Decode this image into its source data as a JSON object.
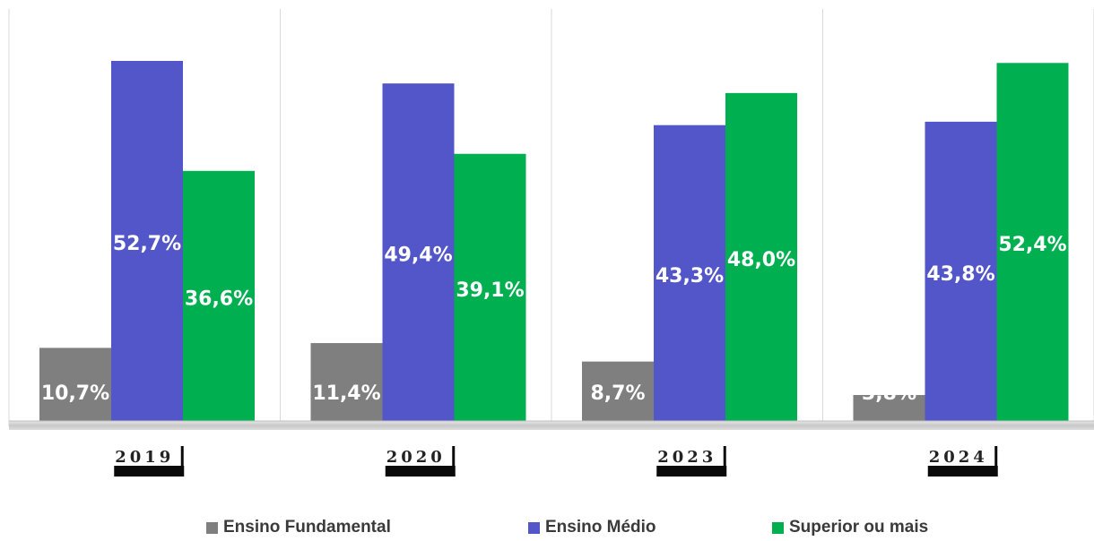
{
  "chart_data": {
    "type": "bar",
    "categories": [
      "2019",
      "2020",
      "2023",
      "2024"
    ],
    "series": [
      {
        "name": "Ensino Fundamental",
        "color": "#7f7f7f",
        "values": [
          10.7,
          11.4,
          8.7,
          3.8
        ],
        "labels": [
          "10,7%",
          "11,4%",
          "8,7%",
          "3,8%"
        ]
      },
      {
        "name": "Ensino Médio",
        "color": "#5356c8",
        "values": [
          52.7,
          49.4,
          43.3,
          43.8
        ],
        "labels": [
          "52,7%",
          "49,4%",
          "43,3%",
          "43,8%"
        ]
      },
      {
        "name": "Superior ou mais",
        "color": "#00b050",
        "values": [
          36.6,
          39.1,
          48.0,
          52.4
        ],
        "labels": [
          "36,6%",
          "39,1%",
          "48,0%",
          "52,4%"
        ]
      }
    ],
    "ylim": [
      0,
      60
    ],
    "grid": "vertical category dividers",
    "legend_position": "bottom"
  }
}
